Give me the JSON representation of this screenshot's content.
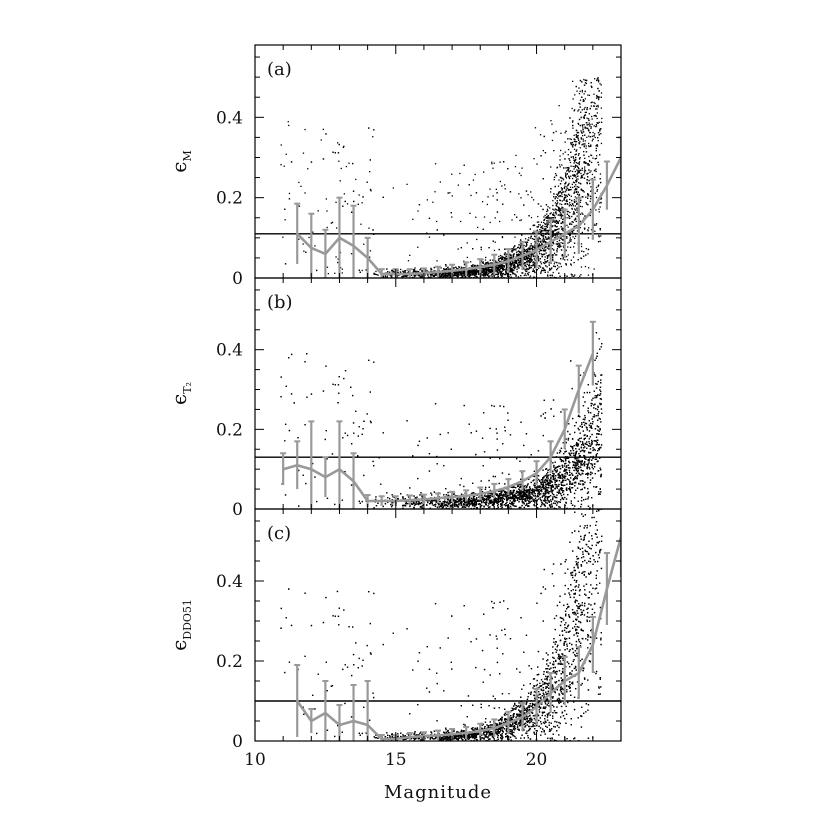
{
  "chart_data": [
    {
      "type": "scatter",
      "panel": "(a)",
      "ylabel": {
        "symbol": "ϵ",
        "subscript": "M"
      },
      "xlabel": "Magnitude",
      "xlim": [
        10,
        23
      ],
      "ylim": [
        0,
        0.58
      ],
      "xticks": [
        10,
        15,
        20
      ],
      "yticks": [
        0,
        0.2,
        0.4
      ],
      "yticklabels": [
        "0",
        "0.2",
        "0.4"
      ],
      "xticklabels": [
        "10",
        "15",
        "20"
      ],
      "threshold": 0.11,
      "mean_curve": {
        "x": [
          11.5,
          12.0,
          12.5,
          13.0,
          13.5,
          14.0,
          14.5,
          15.0,
          15.5,
          16.0,
          16.5,
          17.0,
          17.5,
          18.0,
          18.5,
          19.0,
          19.5,
          20.0,
          20.5,
          21.0,
          21.5,
          22.0,
          22.5,
          23.0
        ],
        "y": [
          0.11,
          0.075,
          0.06,
          0.1,
          0.08,
          0.05,
          0.01,
          0.01,
          0.01,
          0.012,
          0.015,
          0.018,
          0.022,
          0.027,
          0.033,
          0.042,
          0.055,
          0.07,
          0.09,
          0.11,
          0.13,
          0.17,
          0.23,
          0.3
        ],
        "err": [
          0.075,
          0.085,
          0.06,
          0.1,
          0.1,
          0.05,
          0.012,
          0.012,
          0.012,
          0.012,
          0.013,
          0.015,
          0.017,
          0.02,
          0.025,
          0.03,
          0.035,
          0.045,
          0.055,
          0.06,
          0.07,
          0.075,
          0.06,
          0.05
        ]
      },
      "scatter_model": {
        "a0": 0.011,
        "scale": 0.043,
        "m0": 19.6,
        "k": 0.93,
        "yhi": 0.45
      }
    },
    {
      "type": "scatter",
      "panel": "(b)",
      "ylabel": {
        "symbol": "ϵ",
        "subscript": "T₂"
      },
      "xlabel": "Magnitude",
      "xlim": [
        10,
        23
      ],
      "ylim": [
        0,
        0.58
      ],
      "xticks": [
        10,
        15,
        20
      ],
      "yticks": [
        0,
        0.2,
        0.4
      ],
      "yticklabels": [
        "0",
        "0.2",
        "0.4"
      ],
      "xticklabels": [
        "10",
        "15",
        "20"
      ],
      "threshold": 0.13,
      "mean_curve": {
        "x": [
          11.0,
          11.5,
          12.0,
          12.5,
          13.0,
          13.5,
          14.0,
          14.5,
          15.0,
          15.5,
          16.0,
          16.5,
          17.0,
          17.5,
          18.0,
          18.5,
          19.0,
          19.5,
          20.0,
          20.5,
          21.0,
          21.5,
          22.0
        ],
        "y": [
          0.1,
          0.11,
          0.1,
          0.08,
          0.1,
          0.07,
          0.02,
          0.02,
          0.02,
          0.022,
          0.024,
          0.027,
          0.03,
          0.033,
          0.038,
          0.045,
          0.055,
          0.07,
          0.09,
          0.13,
          0.2,
          0.3,
          0.39
        ],
        "err": [
          0.04,
          0.06,
          0.12,
          0.05,
          0.12,
          0.07,
          0.015,
          0.012,
          0.012,
          0.012,
          0.012,
          0.012,
          0.013,
          0.014,
          0.016,
          0.018,
          0.02,
          0.025,
          0.03,
          0.04,
          0.05,
          0.06,
          0.08
        ]
      },
      "scatter_model": {
        "a0": 0.02,
        "scale": 0.043,
        "m0": 20.6,
        "k": 0.92,
        "yhi": 0.4
      }
    },
    {
      "type": "scatter",
      "panel": "(c)",
      "ylabel": {
        "symbol": "ϵ",
        "subscript": "DDO51"
      },
      "xlabel": "Magnitude",
      "xlim": [
        10,
        23
      ],
      "ylim": [
        0,
        0.58
      ],
      "xticks": [
        10,
        15,
        20
      ],
      "yticks": [
        0,
        0.2,
        0.4
      ],
      "yticklabels": [
        "0",
        "0.2",
        "0.4"
      ],
      "xticklabels": [
        "10",
        "15",
        "20"
      ],
      "threshold": 0.1,
      "mean_curve": {
        "x": [
          11.5,
          12.0,
          12.5,
          13.0,
          13.5,
          14.0,
          14.5,
          15.0,
          15.5,
          16.0,
          16.5,
          17.0,
          17.5,
          18.0,
          18.5,
          19.0,
          19.5,
          20.0,
          20.5,
          21.0,
          21.5,
          22.0,
          22.5,
          23.0
        ],
        "y": [
          0.1,
          0.05,
          0.07,
          0.04,
          0.05,
          0.04,
          0.005,
          0.005,
          0.01,
          0.012,
          0.014,
          0.017,
          0.02,
          0.025,
          0.032,
          0.045,
          0.06,
          0.085,
          0.12,
          0.15,
          0.17,
          0.24,
          0.38,
          0.51
        ],
        "err": [
          0.09,
          0.03,
          0.08,
          0.05,
          0.09,
          0.11,
          0.01,
          0.01,
          0.01,
          0.01,
          0.012,
          0.013,
          0.015,
          0.018,
          0.022,
          0.028,
          0.035,
          0.045,
          0.05,
          0.06,
          0.065,
          0.07,
          0.09,
          0.1
        ]
      },
      "scatter_model": {
        "a0": 0.01,
        "scale": 0.048,
        "m0": 19.5,
        "k": 0.95,
        "yhi": 0.55
      }
    }
  ],
  "colors": {
    "points": "#000000",
    "mean_curve": "#999999",
    "threshold_line": "#000000",
    "frame": "#000000"
  }
}
